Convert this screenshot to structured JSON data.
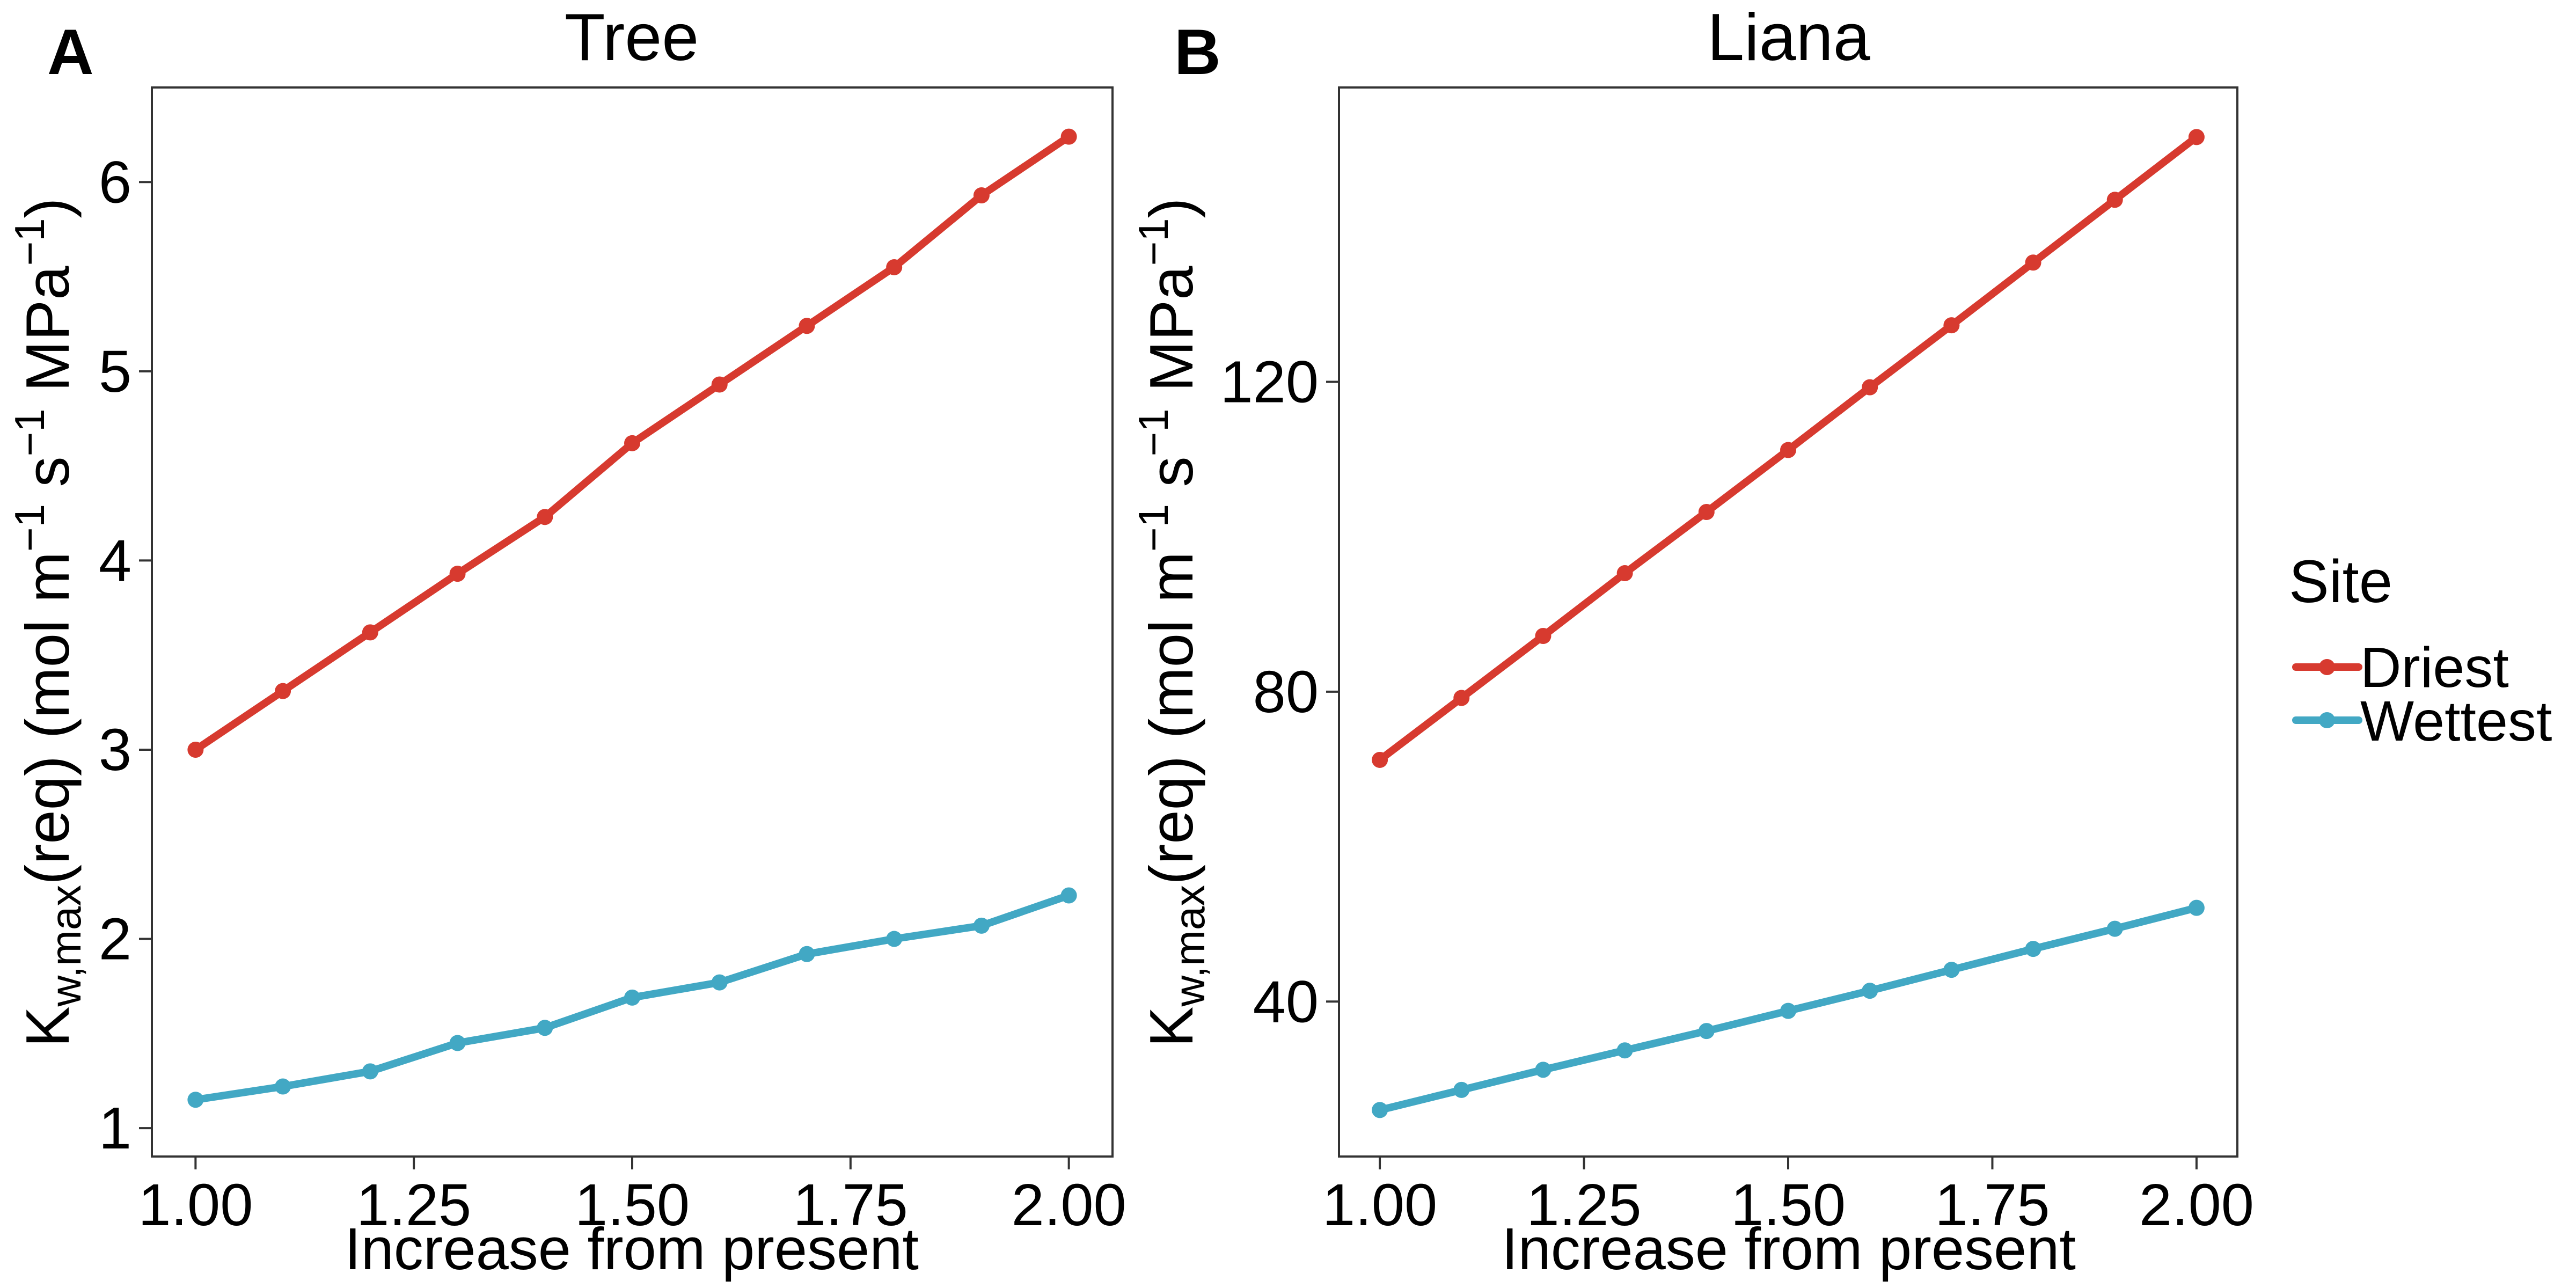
{
  "legend": {
    "title": "Site",
    "entries": [
      {
        "label": "Driest",
        "color": "#d73a2f"
      },
      {
        "label": "Wettest",
        "color": "#42a8c4"
      }
    ]
  },
  "chart_data": [
    {
      "type": "line",
      "panel": "A",
      "title": "Tree",
      "xlabel": "Increase from present",
      "ylabel": "K_{w,max}(req) (mol m^{-1} s^{-1} MPa^{-1})",
      "ylabel_parts": {
        "k": "K",
        "k_sub": "w,max",
        "req": "(req)",
        "units_open": " (mol m",
        "exp1": "−1",
        "s": " s",
        "exp2": "−1",
        "mpa": " MPa",
        "exp3": "−1",
        "units_close": ")"
      },
      "xlim": [
        0.95,
        2.05
      ],
      "ylim": [
        0.85,
        6.5
      ],
      "xticks": [
        1.0,
        1.25,
        1.5,
        1.75,
        2.0
      ],
      "xtick_labels": [
        "1.00",
        "1.25",
        "1.50",
        "1.75",
        "2.00"
      ],
      "yticks": [
        1,
        2,
        3,
        4,
        5,
        6
      ],
      "ytick_labels": [
        "1",
        "2",
        "3",
        "4",
        "5",
        "6"
      ],
      "x": [
        1.0,
        1.1,
        1.2,
        1.3,
        1.4,
        1.5,
        1.6,
        1.7,
        1.8,
        1.9,
        2.0
      ],
      "series": [
        {
          "name": "Driest",
          "color": "#d73a2f",
          "values": [
            3.0,
            3.31,
            3.62,
            3.93,
            4.23,
            4.62,
            4.93,
            5.24,
            5.55,
            5.93,
            6.24
          ]
        },
        {
          "name": "Wettest",
          "color": "#42a8c4",
          "values": [
            1.15,
            1.22,
            1.3,
            1.45,
            1.53,
            1.69,
            1.77,
            1.92,
            2.0,
            2.07,
            2.23
          ]
        }
      ],
      "grid": false
    },
    {
      "type": "line",
      "panel": "B",
      "title": "Liana",
      "xlabel": "Increase from present",
      "ylabel": "K_{w,max}(req) (mol m^{-1} s^{-1} MPa^{-1})",
      "ylabel_parts": {
        "k": "K",
        "k_sub": "w,max",
        "req": "(req)",
        "units_open": " (mol m",
        "exp1": "−1",
        "s": " s",
        "exp2": "−1",
        "mpa": " MPa",
        "exp3": "−1",
        "units_close": ")"
      },
      "xlim": [
        0.95,
        2.05
      ],
      "ylim": [
        20,
        158
      ],
      "xticks": [
        1.0,
        1.25,
        1.5,
        1.75,
        2.0
      ],
      "xtick_labels": [
        "1.00",
        "1.25",
        "1.50",
        "1.75",
        "2.00"
      ],
      "yticks": [
        40,
        80,
        120
      ],
      "ytick_labels": [
        "40",
        "80",
        "120"
      ],
      "x": [
        1.0,
        1.1,
        1.2,
        1.3,
        1.4,
        1.5,
        1.6,
        1.7,
        1.8,
        1.9,
        2.0
      ],
      "series": [
        {
          "name": "Driest",
          "color": "#d73a2f",
          "values": [
            71.2,
            79.2,
            87.2,
            95.3,
            103.2,
            111.2,
            119.3,
            127.3,
            135.4,
            143.5,
            151.6
          ]
        },
        {
          "name": "Wettest",
          "color": "#42a8c4",
          "values": [
            26.0,
            28.6,
            31.2,
            33.7,
            36.2,
            38.8,
            41.4,
            44.1,
            46.8,
            49.4,
            52.1
          ]
        }
      ],
      "grid": false
    }
  ]
}
